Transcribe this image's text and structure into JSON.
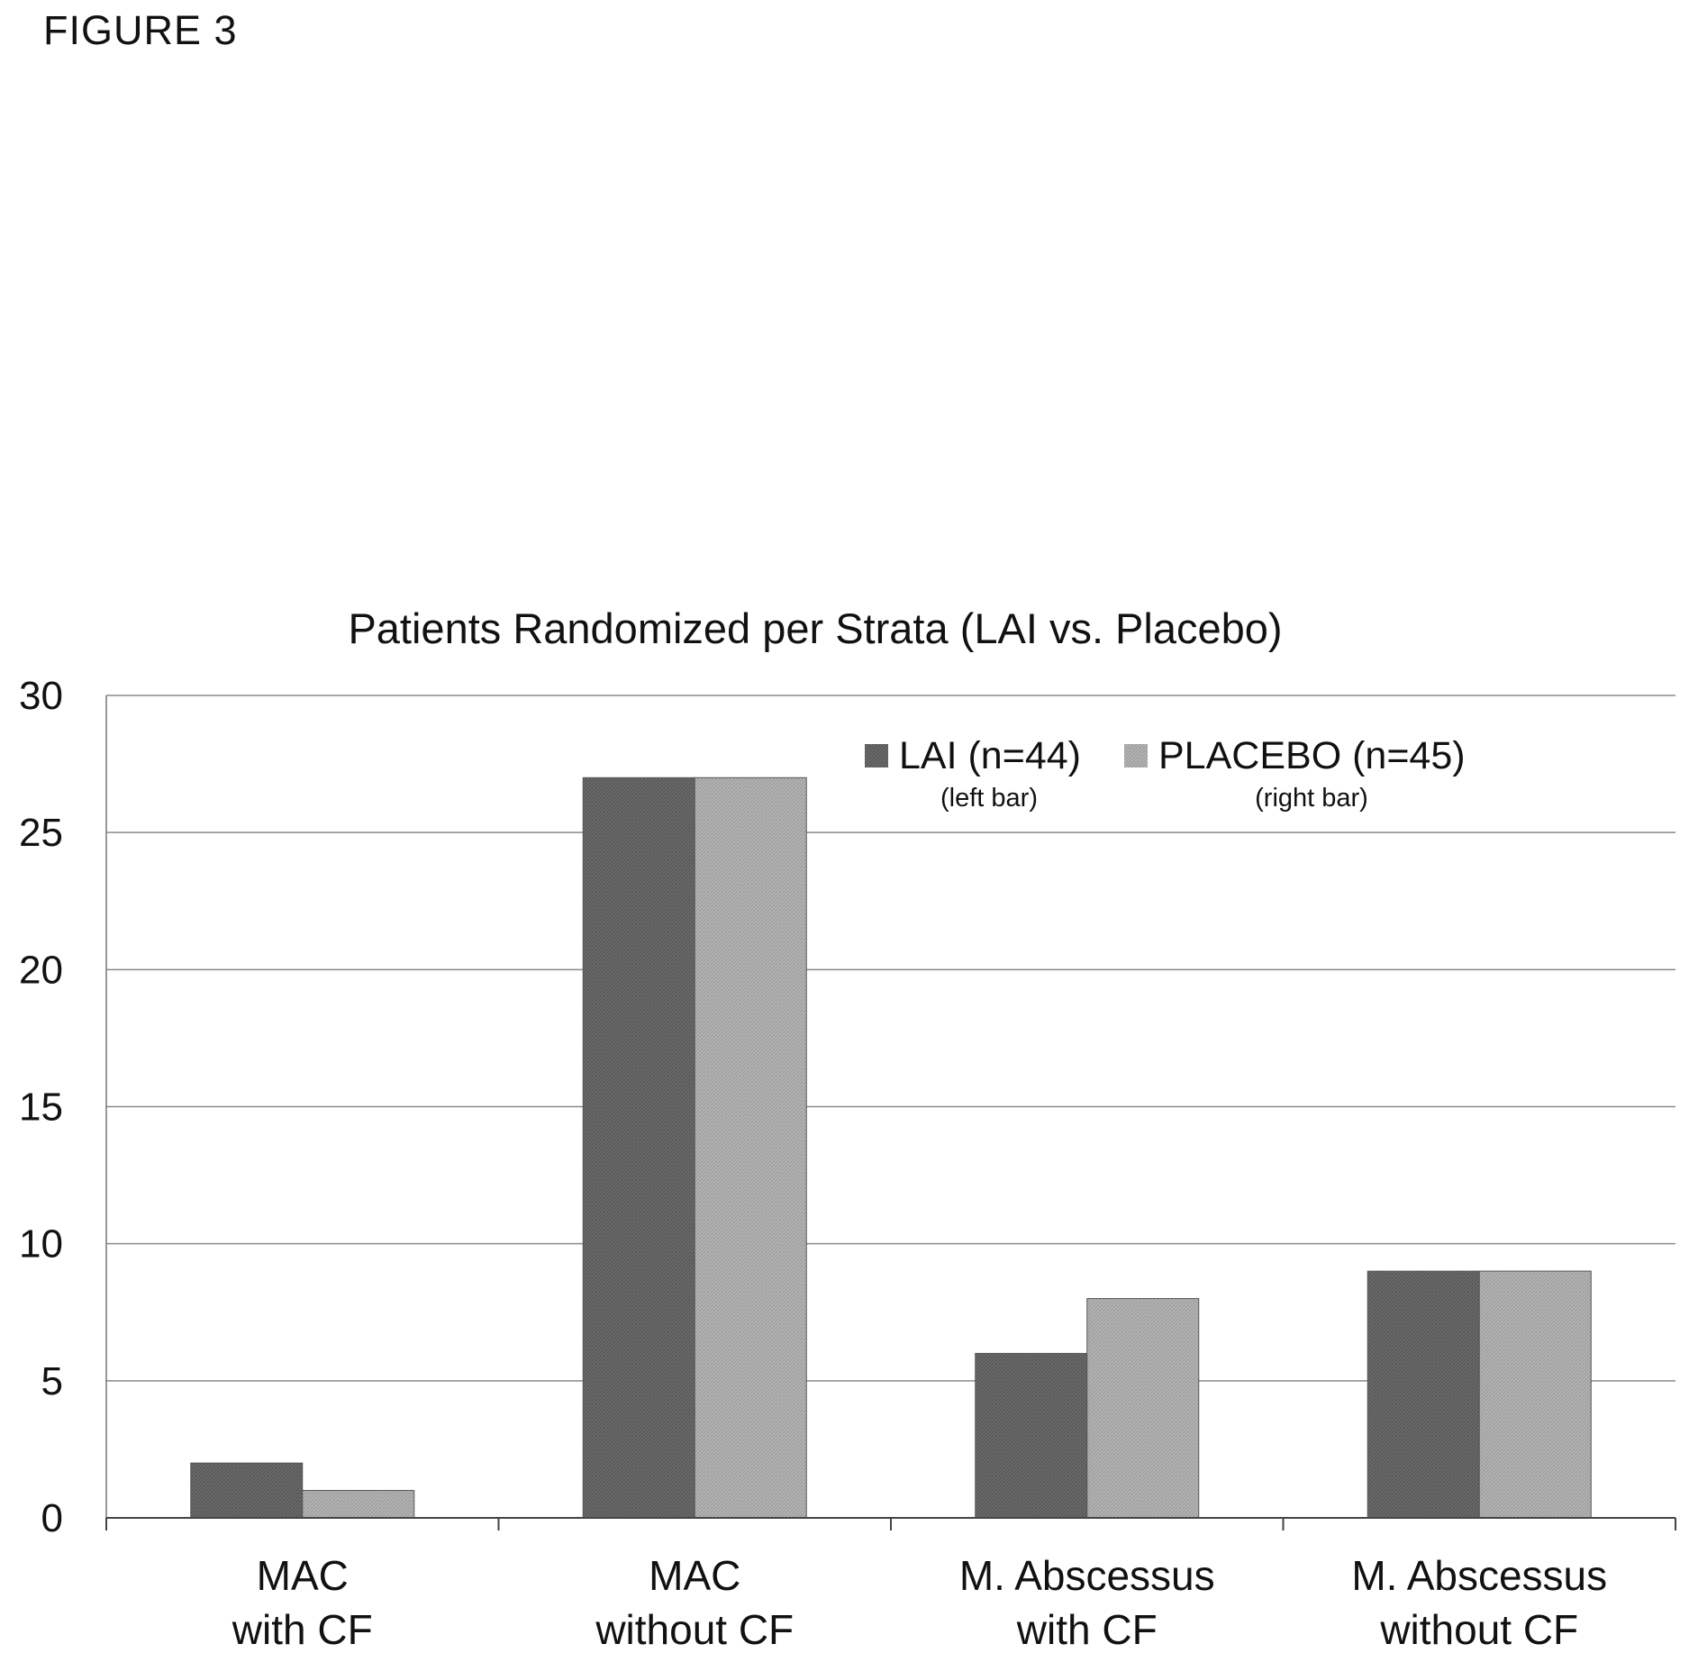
{
  "figure_label": "FIGURE 3",
  "chart_data": {
    "type": "bar",
    "title": "Patients Randomized per Strata (LAI vs. Placebo)",
    "xlabel": "",
    "ylabel": "",
    "ylim": [
      0,
      30
    ],
    "yticks": [
      0,
      5,
      10,
      15,
      20,
      25,
      30
    ],
    "grid": true,
    "legend_position": "top-right",
    "categories": [
      [
        "MAC",
        "with CF"
      ],
      [
        "MAC",
        "without CF"
      ],
      [
        "M. Abscessus",
        "with CF"
      ],
      [
        "M. Abscessus",
        "without CF"
      ]
    ],
    "series": [
      {
        "name": "LAI (n=44)",
        "note": "(left bar)",
        "color": "#666666",
        "values": [
          2,
          27,
          6,
          9
        ]
      },
      {
        "name": "PLACEBO (n=45)",
        "note": "(right bar)",
        "color": "#b0b0b0",
        "values": [
          1,
          27,
          8,
          9
        ]
      }
    ]
  }
}
